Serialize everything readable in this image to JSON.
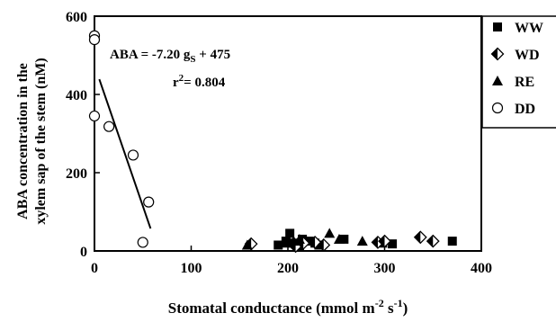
{
  "chart_data": {
    "type": "scatter",
    "xlabel": {
      "main": "Stomatal conductance (mmol m",
      "sup1": "-2",
      "mid": " s",
      "sup2": "-1",
      "end": ")"
    },
    "ylabel": {
      "line1": "ABA concentration in the",
      "line2": "xylem sap of the stem (nM)"
    },
    "xlim": [
      0,
      400
    ],
    "ylim": [
      0,
      600
    ],
    "xticks": [
      0,
      100,
      200,
      300,
      400
    ],
    "yticks": [
      0,
      200,
      400,
      600
    ],
    "grid": false,
    "legend_position": "right",
    "annotation": {
      "equation_prefix": "ABA = -7.20 g",
      "equation_sub": "S",
      "equation_suffix": " + 475",
      "r2_prefix": "r",
      "r2_sup": "2",
      "r2_suffix": "= 0.804"
    },
    "regression": {
      "slope": -7.2,
      "intercept": 475,
      "x_range": [
        5,
        58
      ]
    },
    "series": [
      {
        "name": "WW",
        "marker": "square",
        "points": [
          [
            190,
            15
          ],
          [
            198,
            25
          ],
          [
            202,
            45
          ],
          [
            205,
            20
          ],
          [
            212,
            10
          ],
          [
            215,
            30
          ],
          [
            222,
            25
          ],
          [
            228,
            20
          ],
          [
            232,
            15
          ],
          [
            258,
            30
          ],
          [
            298,
            20
          ],
          [
            308,
            18
          ],
          [
            370,
            25
          ]
        ]
      },
      {
        "name": "WD",
        "marker": "diamond",
        "points": [
          [
            162,
            18
          ],
          [
            208,
            12
          ],
          [
            216,
            20
          ],
          [
            228,
            22
          ],
          [
            237,
            15
          ],
          [
            293,
            22
          ],
          [
            300,
            25
          ],
          [
            337,
            35
          ],
          [
            350,
            25
          ]
        ]
      },
      {
        "name": "RE",
        "marker": "triangle",
        "points": [
          [
            158,
            15
          ],
          [
            196,
            20
          ],
          [
            206,
            25
          ],
          [
            212,
            30
          ],
          [
            243,
            45
          ],
          [
            253,
            30
          ],
          [
            277,
            25
          ]
        ]
      },
      {
        "name": "DD",
        "marker": "circle-open",
        "points": [
          [
            0,
            550
          ],
          [
            0,
            540
          ],
          [
            0,
            345
          ],
          [
            15,
            318
          ],
          [
            40,
            245
          ],
          [
            50,
            22
          ],
          [
            56,
            125
          ]
        ]
      }
    ]
  }
}
